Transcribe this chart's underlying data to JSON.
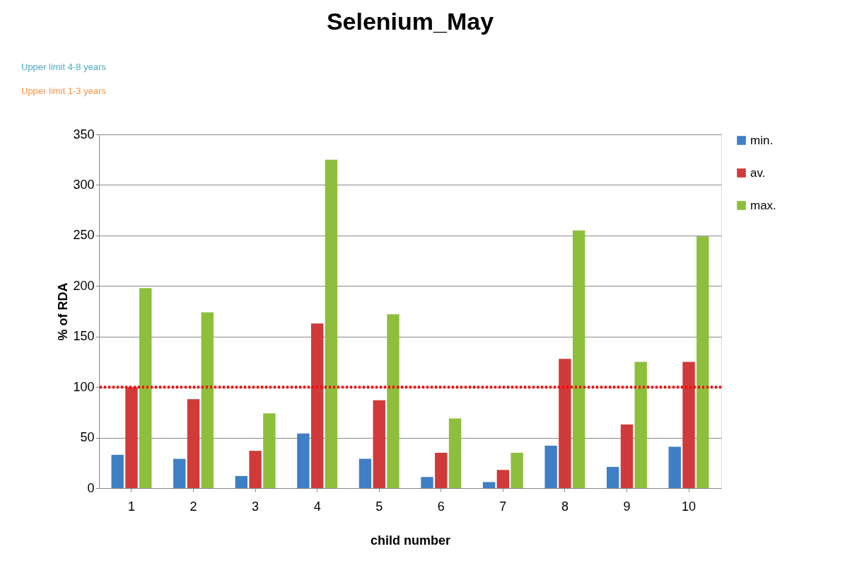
{
  "chart_data": {
    "type": "bar",
    "title": "Selenium_May",
    "xlabel": "child number",
    "ylabel": "% of RDA",
    "categories": [
      "1",
      "2",
      "3",
      "4",
      "5",
      "6",
      "7",
      "8",
      "9",
      "10"
    ],
    "series": [
      {
        "name": "min.",
        "color": "#3f7fc6",
        "values": [
          33,
          29,
          12,
          54,
          29,
          11,
          6,
          42,
          21,
          41
        ]
      },
      {
        "name": "av.",
        "color": "#d03a3a",
        "values": [
          100,
          88,
          37,
          163,
          87,
          35,
          18,
          128,
          63,
          125
        ]
      },
      {
        "name": "max.",
        "color": "#8dbf3c",
        "values": [
          198,
          174,
          74,
          325,
          172,
          69,
          35,
          255,
          125,
          249
        ]
      }
    ],
    "ylim": [
      0,
      350
    ],
    "yticks": [
      0,
      50,
      100,
      150,
      200,
      250,
      300,
      350
    ],
    "grid": "y",
    "legend": "right",
    "ref_lines": [
      {
        "axis": "y",
        "value": 100,
        "color": "#ff0000",
        "line_style": "dotted"
      }
    ],
    "annotations": [
      "Upper limit 4-8 years",
      "Upper limit 1-3 years"
    ]
  }
}
